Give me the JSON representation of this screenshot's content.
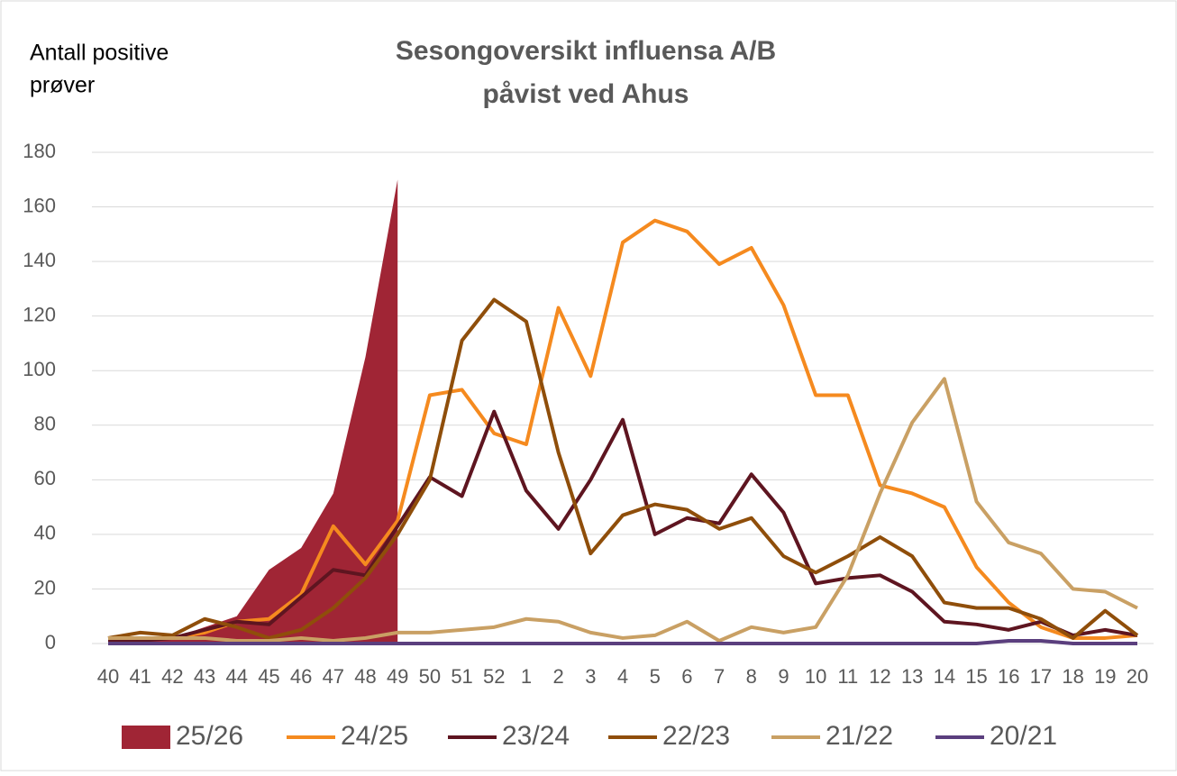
{
  "chart_data": {
    "type": "area-line",
    "title": [
      "Sesongoversikt influensa A/B",
      "påvist ved Ahus"
    ],
    "ylabel": [
      "Antall positive",
      "prøver"
    ],
    "categories": [
      "40",
      "41",
      "42",
      "43",
      "44",
      "45",
      "46",
      "47",
      "48",
      "49",
      "50",
      "51",
      "52",
      "1",
      "2",
      "3",
      "4",
      "5",
      "6",
      "7",
      "8",
      "9",
      "10",
      "11",
      "12",
      "13",
      "14",
      "15",
      "16",
      "17",
      "18",
      "19",
      "20"
    ],
    "ylim": [
      0,
      180
    ],
    "yticks": [
      0,
      20,
      40,
      60,
      80,
      100,
      120,
      140,
      160,
      180
    ],
    "grid": true,
    "legend": "bottom",
    "series": [
      {
        "name": "25/26",
        "kind": "area",
        "color": "#a02535",
        "values": [
          1,
          2,
          2,
          6,
          10,
          27,
          35,
          55,
          105,
          170,
          null,
          null,
          null,
          null,
          null,
          null,
          null,
          null,
          null,
          null,
          null,
          null,
          null,
          null,
          null,
          null,
          null,
          null,
          null,
          null,
          null,
          null,
          null
        ]
      },
      {
        "name": "24/25",
        "kind": "line",
        "color": "#f58a1f",
        "values": [
          2,
          2,
          2,
          4,
          8,
          9,
          18,
          43,
          29,
          45,
          91,
          93,
          77,
          73,
          123,
          98,
          147,
          155,
          151,
          139,
          145,
          124,
          91,
          91,
          58,
          55,
          50,
          28,
          15,
          6,
          2,
          2,
          3
        ]
      },
      {
        "name": "23/24",
        "kind": "line",
        "color": "#5e1520",
        "values": [
          1,
          1,
          2,
          5,
          8,
          7,
          17,
          27,
          25,
          43,
          61,
          54,
          85,
          56,
          42,
          60,
          82,
          40,
          46,
          44,
          62,
          48,
          22,
          24,
          25,
          19,
          8,
          7,
          5,
          8,
          3,
          5,
          3
        ]
      },
      {
        "name": "22/23",
        "kind": "line",
        "color": "#8f4e0a",
        "values": [
          2,
          4,
          3,
          9,
          6,
          2,
          5,
          13,
          24,
          40,
          60,
          111,
          126,
          118,
          70,
          33,
          47,
          51,
          49,
          42,
          46,
          32,
          26,
          32,
          39,
          32,
          15,
          13,
          13,
          9,
          2,
          12,
          3
        ]
      },
      {
        "name": "21/22",
        "kind": "line",
        "color": "#c9a064",
        "values": [
          2,
          2,
          2,
          2,
          1,
          1,
          2,
          1,
          2,
          4,
          4,
          5,
          6,
          9,
          8,
          4,
          2,
          3,
          8,
          1,
          6,
          4,
          6,
          25,
          55,
          81,
          97,
          52,
          37,
          33,
          20,
          19,
          13
        ]
      },
      {
        "name": "20/21",
        "kind": "line",
        "color": "#5b3f7e",
        "values": [
          0,
          0,
          0,
          0,
          0,
          0,
          0,
          0,
          0,
          0,
          0,
          0,
          0,
          0,
          0,
          0,
          0,
          0,
          0,
          0,
          0,
          0,
          0,
          0,
          0,
          0,
          0,
          0,
          1,
          1,
          0,
          0,
          0
        ]
      }
    ]
  }
}
